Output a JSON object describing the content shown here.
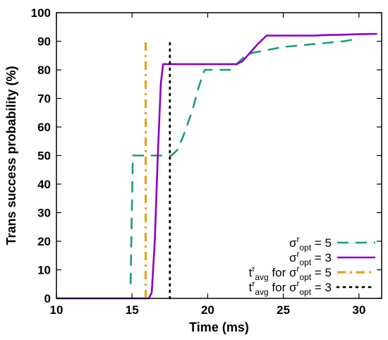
{
  "chart_data": {
    "type": "line",
    "xlabel": "Time (ms)",
    "ylabel": "Trans success probability (%)",
    "xlim": [
      10,
      31.5
    ],
    "ylim": [
      0,
      100
    ],
    "xticks": [
      "10",
      "15",
      "20",
      "25",
      "30"
    ],
    "yticks": [
      "0",
      "10",
      "20",
      "30",
      "40",
      "50",
      "60",
      "70",
      "80",
      "90",
      "100"
    ],
    "grid": false,
    "legend_position": "bottom-right",
    "series": [
      {
        "name": "σ^r_opt = 5",
        "style": "dashed",
        "color": "#1a9e77",
        "points": [
          [
            14.9,
            5
          ],
          [
            15.05,
            50
          ],
          [
            16.0,
            50
          ],
          [
            17.0,
            50
          ],
          [
            17.6,
            50
          ],
          [
            18.0,
            52
          ],
          [
            18.4,
            57
          ],
          [
            19.0,
            66
          ],
          [
            19.4,
            74
          ],
          [
            19.8,
            80
          ],
          [
            20.5,
            80
          ],
          [
            21.6,
            80
          ],
          [
            22.1,
            83
          ],
          [
            22.5,
            85
          ],
          [
            23.0,
            86
          ],
          [
            24.0,
            87
          ],
          [
            25.0,
            88
          ],
          [
            26.0,
            88.5
          ],
          [
            27.0,
            89
          ],
          [
            28.0,
            89.5
          ],
          [
            29.0,
            90
          ],
          [
            30.0,
            91
          ]
        ]
      },
      {
        "name": "σ^r_opt = 3",
        "style": "solid",
        "color": "#8b00c8",
        "points": [
          [
            10.0,
            0
          ],
          [
            16.1,
            0
          ],
          [
            16.3,
            2
          ],
          [
            16.5,
            20
          ],
          [
            16.7,
            50
          ],
          [
            16.9,
            75
          ],
          [
            17.05,
            82
          ],
          [
            20.0,
            82
          ],
          [
            21.9,
            82
          ],
          [
            22.3,
            83
          ],
          [
            22.8,
            86
          ],
          [
            23.3,
            89
          ],
          [
            23.9,
            92
          ],
          [
            25.0,
            92
          ],
          [
            26.0,
            92
          ],
          [
            27.0,
            92
          ],
          [
            28.0,
            92.2
          ],
          [
            29.0,
            92.3
          ],
          [
            30.0,
            92.5
          ],
          [
            31.2,
            92.6
          ]
        ]
      },
      {
        "name": "t^r_avg for σ^r_opt = 5",
        "style": "dash-dot",
        "color": "#e6a11a",
        "points": [
          [
            15.9,
            0
          ],
          [
            15.9,
            90.5
          ]
        ]
      },
      {
        "name": "t^r_avg for σ^r_opt = 3",
        "style": "dotted",
        "color": "#000000",
        "points": [
          [
            17.5,
            0
          ],
          [
            17.5,
            90.5
          ]
        ]
      }
    ],
    "legend": [
      {
        "sigma": "σ",
        "sup": "r",
        "sub": "opt",
        "rest": " = 5"
      },
      {
        "sigma": "σ",
        "sup": "r",
        "sub": "opt",
        "rest": " = 3"
      },
      {
        "pre": "t",
        "pre_sup": "r",
        "pre_sub": "avg",
        "mid": " for ",
        "sigma": "σ",
        "sup": "r",
        "sub": "opt",
        "rest": " = 5"
      },
      {
        "pre": "t",
        "pre_sup": "r",
        "pre_sub": "avg",
        "mid": " for ",
        "sigma": "σ",
        "sup": "r",
        "sub": "opt",
        "rest": " = 3"
      }
    ]
  }
}
